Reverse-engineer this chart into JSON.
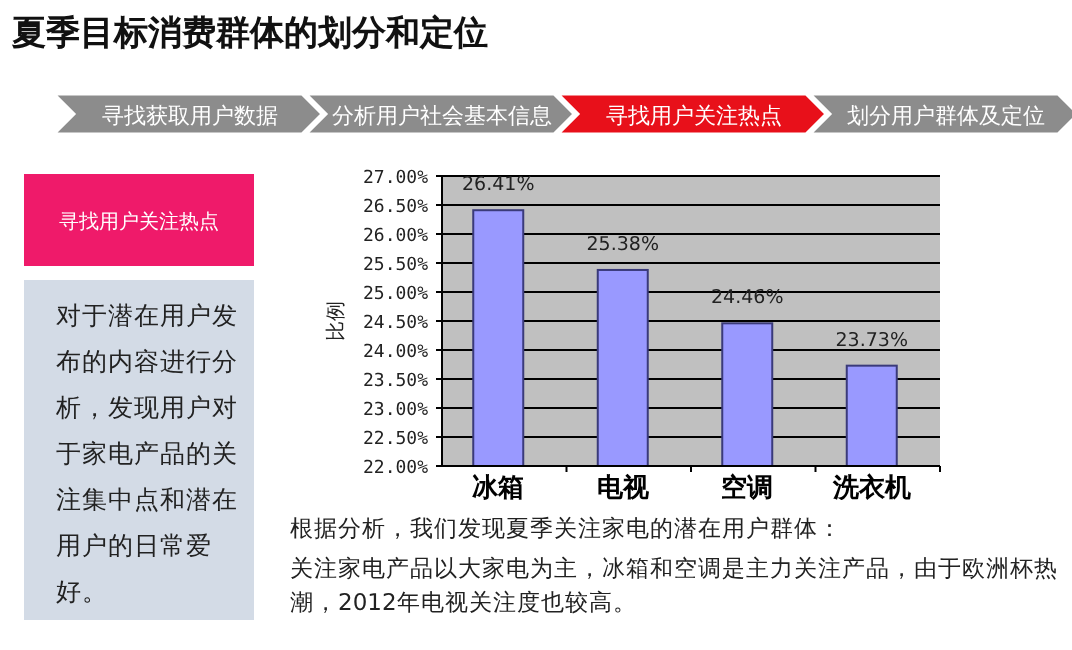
{
  "chart_data": {
    "type": "bar",
    "title": "夏季目标消费群体的划分和定位",
    "ylabel": "比例",
    "categories": [
      "冰箱",
      "电视",
      "空调",
      "洗衣机"
    ],
    "values": [
      26.41,
      25.38,
      24.46,
      23.73
    ],
    "value_labels": [
      "26.41%",
      "25.38%",
      "24.46%",
      "23.73%"
    ],
    "color": "#9999ff",
    "ylim": [
      22,
      27
    ],
    "yticks": [
      {
        "value": 22,
        "label": "22.00%"
      },
      {
        "value": 22.5,
        "label": "22.50%"
      },
      {
        "value": 23,
        "label": "23.00%"
      },
      {
        "value": 23.5,
        "label": "23.50%"
      },
      {
        "value": 24,
        "label": "24.00%"
      },
      {
        "value": 24.5,
        "label": "24.50%"
      },
      {
        "value": 25,
        "label": "25.00%"
      },
      {
        "value": 25.5,
        "label": "25.50%"
      },
      {
        "value": 26,
        "label": "26.00%"
      },
      {
        "value": 26.5,
        "label": "26.50%"
      },
      {
        "value": 27,
        "label": "27.00%"
      }
    ],
    "grid": "y",
    "annotations": [
      "寻找获取用户数据",
      "分析用户社会基本信息",
      "寻找用户关注热点",
      "划分用户群体及定位",
      "寻找用户关注热点",
      "对于潜在用户发布的内容进行分析，发现用户对于家电产品的关注集中点和潜在用户的日常爱好。",
      "根据分析，我们发现夏季关注家电的潜在用户群体：",
      "关注家电产品以大家电为主，冰箱和空调是主力关注产品，由于欧洲杯热潮，2012年电视关注度也较高。"
    ]
  }
}
